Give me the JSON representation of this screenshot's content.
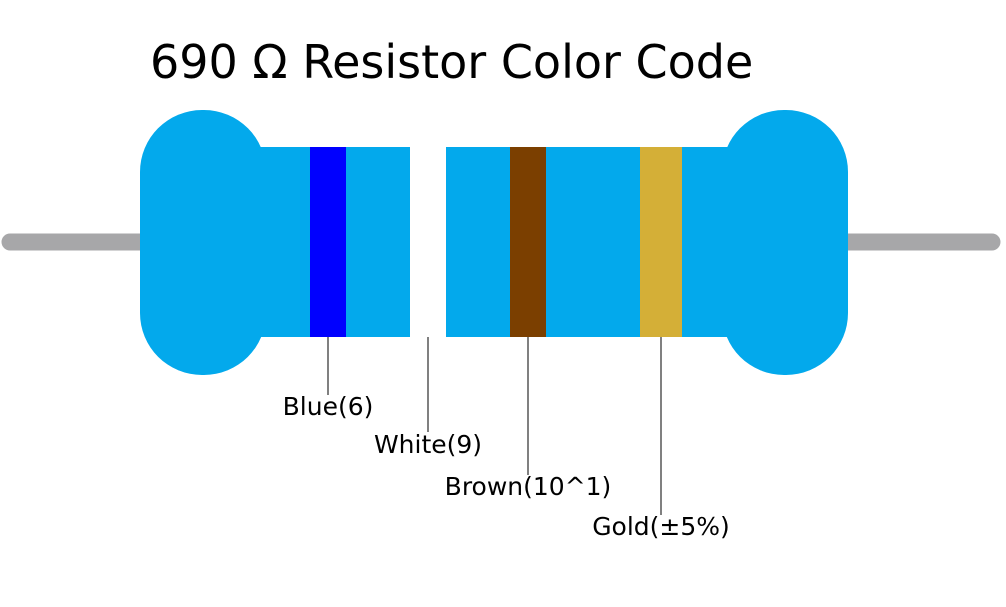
{
  "title": "690 Ω Resistor Color Code",
  "bands": [
    {
      "label": "Blue(6)",
      "color": "#0000ff"
    },
    {
      "label": "White(9)",
      "color": "#ffffff"
    },
    {
      "label": "Brown(10^1)",
      "color": "#7b3f00"
    },
    {
      "label": "Gold(±5%)",
      "color": "#d4af37"
    }
  ]
}
